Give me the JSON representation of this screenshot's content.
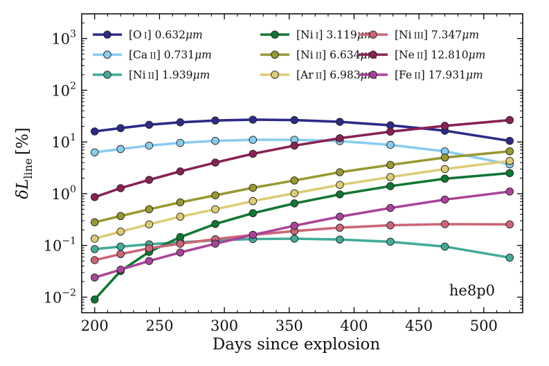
{
  "chart_data": {
    "type": "line",
    "title": "",
    "xlabel": "Days since explosion",
    "ylabel": "δL_line [%]",
    "ylabel_main": "δ",
    "ylabel_var": "L",
    "ylabel_sub": "line",
    "ylabel_unit": "[%]",
    "xlim": [
      190,
      530
    ],
    "ylim": [
      0.005,
      3000
    ],
    "yscale": "log",
    "x_ticks": [
      200,
      250,
      300,
      350,
      400,
      450,
      500
    ],
    "x_tick_labels": [
      "200",
      "250",
      "300",
      "350",
      "400",
      "450",
      "500"
    ],
    "y_ticks": [
      {
        "value": 0.01,
        "base": "10",
        "exp": "−2"
      },
      {
        "value": 0.1,
        "base": "10",
        "exp": "−1"
      },
      {
        "value": 1,
        "base": "10",
        "exp": "0"
      },
      {
        "value": 10,
        "base": "10",
        "exp": "1"
      },
      {
        "value": 100,
        "base": "10",
        "exp": "2"
      },
      {
        "value": 1000,
        "base": "10",
        "exp": "3"
      }
    ],
    "annotation": "he8p0",
    "legend_location": "top",
    "x": [
      200,
      220,
      242,
      266,
      293,
      322,
      354,
      389,
      428,
      470,
      520
    ],
    "series": [
      {
        "name": "[O I] 0.632μm",
        "ion": "[O",
        "numeral": "I",
        "wave": "] 0.632",
        "mu": "μ",
        "unit": "m",
        "color": "#2e2a88",
        "values": [
          16,
          18.5,
          21.5,
          24,
          26,
          27,
          26.5,
          24.5,
          21,
          16.5,
          10.5
        ]
      },
      {
        "name": "[Ca II] 0.731μm",
        "ion": "[Ca",
        "numeral": "II",
        "wave": "] 0.731",
        "mu": "μ",
        "unit": "m",
        "color": "#88ccee",
        "values": [
          6.3,
          7.3,
          8.5,
          9.6,
          10.5,
          11,
          11,
          10.4,
          8.8,
          6.6,
          3.7
        ]
      },
      {
        "name": "[Ni II] 1.939μm",
        "ion": "[Ni",
        "numeral": "II",
        "wave": "] 1.939",
        "mu": "μ",
        "unit": "m",
        "color": "#44aa99",
        "values": [
          0.085,
          0.095,
          0.105,
          0.115,
          0.125,
          0.133,
          0.135,
          0.13,
          0.118,
          0.095,
          0.058
        ]
      },
      {
        "name": "[Ni I] 3.119μm",
        "ion": "[Ni",
        "numeral": "I",
        "wave": "] 3.119",
        "mu": "μ",
        "unit": "m",
        "color": "#117733",
        "values": [
          0.009,
          0.032,
          0.075,
          0.145,
          0.26,
          0.42,
          0.65,
          0.97,
          1.4,
          1.95,
          2.5
        ]
      },
      {
        "name": "[Ni II] 6.634μm",
        "ion": "[Ni",
        "numeral": "II",
        "wave": "] 6.634",
        "mu": "μ",
        "unit": "m",
        "color": "#999933",
        "values": [
          0.28,
          0.37,
          0.5,
          0.68,
          0.93,
          1.3,
          1.8,
          2.6,
          3.6,
          5.0,
          6.6
        ]
      },
      {
        "name": "[Ar II] 6.983μm",
        "ion": "[Ar",
        "numeral": "II",
        "wave": "] 6.983",
        "mu": "μ",
        "unit": "m",
        "color": "#ddcc77",
        "values": [
          0.135,
          0.185,
          0.255,
          0.36,
          0.5,
          0.72,
          1.02,
          1.48,
          2.1,
          3.0,
          4.3
        ]
      },
      {
        "name": "[Ni III] 7.347μm",
        "ion": "[Ni",
        "numeral": "III",
        "wave": "] 7.347",
        "mu": "μ",
        "unit": "m",
        "color": "#cc6677",
        "values": [
          0.052,
          0.068,
          0.088,
          0.108,
          0.132,
          0.16,
          0.19,
          0.22,
          0.245,
          0.258,
          0.255
        ]
      },
      {
        "name": "[Ne II] 12.810μm",
        "ion": "[Ne",
        "numeral": "II",
        "wave": "] 12.810",
        "mu": "μ",
        "unit": "m",
        "color": "#882255",
        "values": [
          0.86,
          1.28,
          1.85,
          2.7,
          4.0,
          5.9,
          8.5,
          11.8,
          15.8,
          20.5,
          26.5
        ]
      },
      {
        "name": "[Fe II] 17.931μm",
        "ion": "[Fe",
        "numeral": "II",
        "wave": "] 17.931",
        "mu": "μ",
        "unit": "m",
        "color": "#aa4499",
        "values": [
          0.024,
          0.034,
          0.05,
          0.073,
          0.108,
          0.16,
          0.24,
          0.36,
          0.53,
          0.77,
          1.1
        ]
      }
    ]
  }
}
